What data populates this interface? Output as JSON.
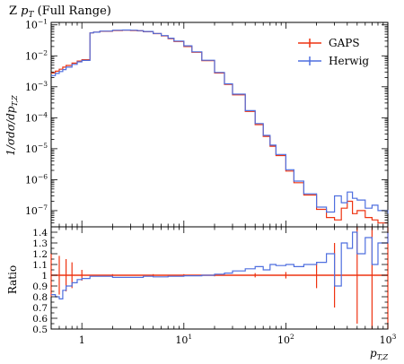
{
  "chart_data": {
    "type": "line",
    "title": "Z p_T (Full Range)",
    "title_base": "Z ",
    "title_var": "p",
    "title_sub": "T",
    "title_rest": " (Full Range)",
    "ylabel": "1/σdσ/dp_T,Z",
    "ylabel_base": "1/σdσ/dp",
    "ylabel_sub": "T,Z",
    "xlabel": "p_T,Z",
    "xlabel_base": "p",
    "xlabel_sub": "T,Z",
    "ratio_ylabel": "Ratio",
    "x_scale": "log",
    "y_scale": "log",
    "xlim": [
      0.5,
      1000
    ],
    "ylim": [
      3e-08,
      0.12
    ],
    "ratio_ylim": [
      0.5,
      1.45
    ],
    "legend_position": "top-right",
    "x_tick_labels": [
      {
        "value": 1,
        "label": "1"
      },
      {
        "value": 10,
        "label": "10",
        "exp": "1"
      },
      {
        "value": 100,
        "label": "10",
        "exp": "2"
      },
      {
        "value": 1000,
        "label": "10",
        "exp": "3"
      }
    ],
    "y_tick_labels": [
      {
        "value": 0.1,
        "label": "10",
        "exp": "−1"
      },
      {
        "value": 0.01,
        "label": "10",
        "exp": "−2"
      },
      {
        "value": 0.001,
        "label": "10",
        "exp": "−3"
      },
      {
        "value": 0.0001,
        "label": "10",
        "exp": "−4"
      },
      {
        "value": 1e-05,
        "label": "10",
        "exp": "−5"
      },
      {
        "value": 1e-06,
        "label": "10",
        "exp": "−6"
      },
      {
        "value": 1e-07,
        "label": "10",
        "exp": "−7"
      }
    ],
    "ratio_tick_labels": [
      "0.5",
      "0.6",
      "0.7",
      "0.8",
      "0.9",
      "1",
      "1.1",
      "1.2",
      "1.3",
      "1.4"
    ],
    "series": [
      {
        "name": "GAPS",
        "color": "#ee3311",
        "x": [
          0.5,
          0.55,
          0.6,
          0.65,
          0.7,
          0.8,
          0.9,
          1.0,
          1.2,
          1.3,
          1.5,
          2,
          2.5,
          3,
          3.5,
          4,
          5,
          6,
          7,
          8,
          10,
          12,
          15,
          20,
          25,
          30,
          40,
          50,
          60,
          70,
          80,
          100,
          120,
          150,
          200,
          250,
          300,
          350,
          400,
          450,
          500,
          600,
          700,
          800,
          1000
        ],
        "y": [
          0.0028,
          0.0032,
          0.0037,
          0.0043,
          0.0049,
          0.0058,
          0.0068,
          0.0075,
          0.055,
          0.058,
          0.062,
          0.066,
          0.067,
          0.066,
          0.064,
          0.06,
          0.052,
          0.044,
          0.036,
          0.029,
          0.02,
          0.013,
          0.007,
          0.0028,
          0.0012,
          0.00055,
          0.00016,
          6e-05,
          2.5e-05,
          1.2e-05,
          6e-06,
          1.9e-06,
          8e-07,
          3.2e-07,
          1.1e-07,
          6e-08,
          5e-08,
          1.2e-07,
          2e-07,
          8e-08,
          1e-07,
          6e-08,
          5e-08,
          4e-08,
          4e-08
        ]
      },
      {
        "name": "Herwig",
        "color": "#4f6fdf",
        "x": [
          0.5,
          0.55,
          0.6,
          0.65,
          0.7,
          0.8,
          0.9,
          1.0,
          1.2,
          1.3,
          1.5,
          2,
          2.5,
          3,
          3.5,
          4,
          5,
          6,
          7,
          8,
          10,
          12,
          15,
          20,
          25,
          30,
          40,
          50,
          60,
          70,
          80,
          100,
          120,
          150,
          200,
          250,
          300,
          350,
          400,
          450,
          500,
          600,
          700,
          800,
          1000
        ],
        "y": [
          0.0023,
          0.0027,
          0.0031,
          0.0036,
          0.0043,
          0.0053,
          0.0064,
          0.0071,
          0.055,
          0.058,
          0.063,
          0.067,
          0.068,
          0.067,
          0.065,
          0.061,
          0.053,
          0.045,
          0.037,
          0.03,
          0.021,
          0.0135,
          0.0072,
          0.0029,
          0.00125,
          0.00058,
          0.00017,
          6.5e-05,
          2.7e-05,
          1.3e-05,
          6.5e-06,
          2.1e-06,
          9e-07,
          3.5e-07,
          1.3e-07,
          9e-08,
          3e-07,
          1.8e-07,
          4e-07,
          2.5e-07,
          2.2e-07,
          1.2e-07,
          1.5e-07,
          1e-07,
          8e-08
        ]
      }
    ],
    "ratio_series": [
      {
        "name": "GAPS",
        "color": "#ee3311",
        "x": [
          0.5,
          0.6,
          0.7,
          0.8,
          1.0,
          2,
          5,
          10,
          20,
          50,
          100,
          200,
          300,
          500,
          700,
          1000
        ],
        "y": [
          1,
          1,
          1,
          1,
          1,
          1,
          1,
          1,
          1,
          1,
          1,
          1,
          1,
          1,
          1,
          1
        ],
        "err": [
          0.2,
          0.18,
          0.15,
          0.12,
          0.05,
          0.01,
          0.01,
          0.01,
          0.01,
          0.02,
          0.03,
          0.12,
          0.3,
          0.45,
          0.5,
          0.5
        ]
      },
      {
        "name": "Herwig",
        "color": "#4f6fdf",
        "x": [
          0.5,
          0.55,
          0.6,
          0.65,
          0.7,
          0.8,
          0.9,
          1.0,
          1.2,
          1.5,
          2,
          3,
          4,
          5,
          7,
          10,
          15,
          20,
          25,
          30,
          40,
          50,
          60,
          70,
          80,
          100,
          120,
          150,
          200,
          250,
          300,
          350,
          400,
          450,
          500,
          600,
          700,
          800,
          1000
        ],
        "y": [
          0.82,
          0.8,
          0.78,
          0.86,
          0.9,
          0.93,
          0.96,
          0.97,
          0.99,
          0.99,
          0.98,
          0.98,
          0.99,
          0.985,
          0.99,
          0.995,
          1.0,
          1.01,
          1.02,
          1.04,
          1.06,
          1.08,
          1.05,
          1.1,
          1.09,
          1.1,
          1.08,
          1.1,
          1.12,
          1.2,
          0.9,
          1.3,
          1.25,
          1.4,
          1.2,
          1.35,
          1.1,
          1.3,
          1.4
        ]
      }
    ]
  }
}
